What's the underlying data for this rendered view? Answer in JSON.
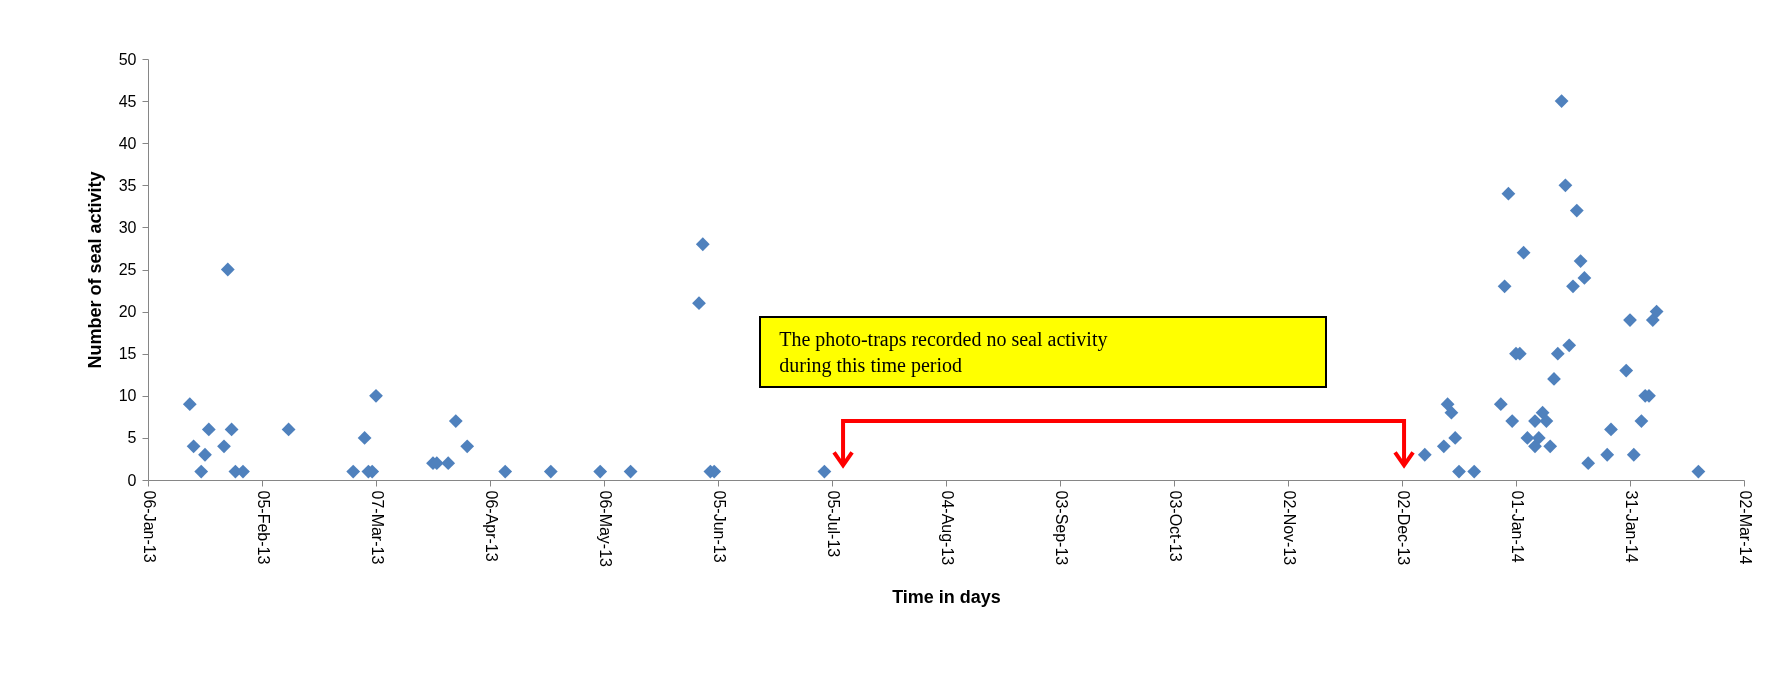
{
  "chart_data": {
    "type": "scatter",
    "xlabel": "Time in days",
    "ylabel": "Number of seal activity",
    "x": [
      "2013-01-17",
      "2013-01-18",
      "2013-01-20",
      "2013-01-21",
      "2013-01-22",
      "2013-01-26",
      "2013-01-27",
      "2013-01-28",
      "2013-01-29",
      "2013-01-31",
      "2013-02-12",
      "2013-03-01",
      "2013-03-04",
      "2013-03-05",
      "2013-03-06",
      "2013-03-07",
      "2013-03-22",
      "2013-03-23",
      "2013-03-26",
      "2013-03-28",
      "2013-03-31",
      "2013-04-10",
      "2013-04-22",
      "2013-05-05",
      "2013-05-13",
      "2013-05-31",
      "2013-06-01",
      "2013-06-03",
      "2013-06-04",
      "2013-07-03",
      "2013-12-08",
      "2013-12-13",
      "2013-12-14",
      "2013-12-15",
      "2013-12-16",
      "2013-12-17",
      "2013-12-21",
      "2013-12-28",
      "2013-12-29",
      "2013-12-30",
      "2013-12-31",
      "2014-01-01",
      "2014-01-02",
      "2014-01-03",
      "2014-01-04",
      "2014-01-06",
      "2014-01-06",
      "2014-01-07",
      "2014-01-08",
      "2014-01-09",
      "2014-01-10",
      "2014-01-11",
      "2014-01-12",
      "2014-01-13",
      "2014-01-14",
      "2014-01-15",
      "2014-01-16",
      "2014-01-17",
      "2014-01-18",
      "2014-01-19",
      "2014-01-20",
      "2014-01-25",
      "2014-01-26",
      "2014-01-30",
      "2014-01-31",
      "2014-02-01",
      "2014-02-03",
      "2014-02-04",
      "2014-02-05",
      "2014-02-06",
      "2014-02-07",
      "2014-02-18"
    ],
    "values": [
      9,
      4,
      1,
      3,
      6,
      4,
      25,
      6,
      1,
      1,
      6,
      1,
      5,
      1,
      1,
      10,
      2,
      2,
      2,
      7,
      4,
      1,
      1,
      1,
      1,
      21,
      28,
      1,
      1,
      1,
      3,
      4,
      9,
      8,
      5,
      1,
      1,
      9,
      23,
      34,
      7,
      15,
      15,
      27,
      5,
      4,
      7,
      5,
      8,
      7,
      4,
      12,
      15,
      45,
      35,
      16,
      23,
      32,
      26,
      24,
      2,
      3,
      6,
      13,
      19,
      3,
      7,
      10,
      10,
      19,
      20,
      1
    ],
    "color": "#4f81bd",
    "marker": "diamond",
    "xlim": [
      "2013-01-06",
      "2014-03-02"
    ],
    "xticks": [
      {
        "value": "2013-01-06",
        "label": "06-Jan-13"
      },
      {
        "value": "2013-02-05",
        "label": "05-Feb-13"
      },
      {
        "value": "2013-03-07",
        "label": "07-Mar-13"
      },
      {
        "value": "2013-04-06",
        "label": "06-Apr-13"
      },
      {
        "value": "2013-05-06",
        "label": "06-May-13"
      },
      {
        "value": "2013-06-05",
        "label": "05-Jun-13"
      },
      {
        "value": "2013-07-05",
        "label": "05-Jul-13"
      },
      {
        "value": "2013-08-04",
        "label": "04-Aug-13"
      },
      {
        "value": "2013-09-03",
        "label": "03-Sep-13"
      },
      {
        "value": "2013-10-03",
        "label": "03-Oct-13"
      },
      {
        "value": "2013-11-02",
        "label": "02-Nov-13"
      },
      {
        "value": "2013-12-02",
        "label": "02-Dec-13"
      },
      {
        "value": "2014-01-01",
        "label": "01-Jan-14"
      },
      {
        "value": "2014-01-31",
        "label": "31-Jan-14"
      },
      {
        "value": "2014-03-02",
        "label": "02-Mar-14"
      }
    ],
    "ylim": [
      0,
      50
    ],
    "yticks": [
      0,
      5,
      10,
      15,
      20,
      25,
      30,
      35,
      40,
      45,
      50
    ],
    "annotations": [
      "The photo-traps recorded no seal activity during this time period"
    ]
  }
}
